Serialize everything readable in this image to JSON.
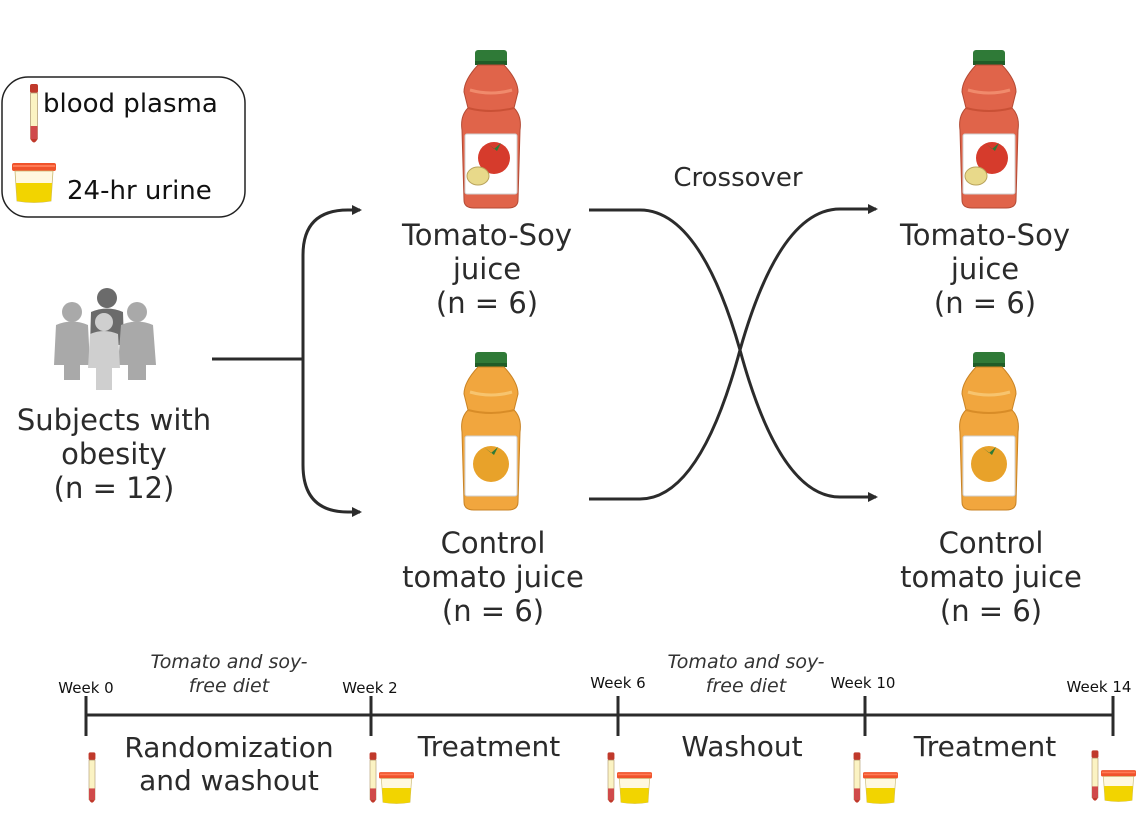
{
  "legend": {
    "blood_label": "blood plasma",
    "urine_label": "24-hr urine"
  },
  "subjects": {
    "line1": "Subjects with",
    "line2": "obesity",
    "line3": "(n = 12)"
  },
  "crossover_label": "Crossover",
  "arms": {
    "period1_top": {
      "line1": "Tomato-Soy",
      "line2": "juice",
      "line3": "(n = 6)"
    },
    "period1_bottom": {
      "line1": "Control",
      "line2": "tomato juice",
      "line3": "(n = 6)"
    },
    "period2_top": {
      "line1": "Tomato-Soy",
      "line2": "juice",
      "line3": "(n = 6)"
    },
    "period2_bottom": {
      "line1": "Control",
      "line2": "tomato juice",
      "line3": "(n = 6)"
    }
  },
  "timeline": {
    "weeks": [
      "Week 0",
      "Week 2",
      "Week 6",
      "Week 10",
      "Week 14"
    ],
    "diet_note_1": {
      "line1": "Tomato and soy-",
      "line2": "free diet"
    },
    "diet_note_2": {
      "line1": "Tomato and soy-",
      "line2": "free diet"
    },
    "phases": {
      "p1_line1": "Randomization",
      "p1_line2": "and washout",
      "p2": "Treatment",
      "p3": "Washout",
      "p4": "Treatment"
    }
  },
  "colors": {
    "soy_bottle": "#e0644a",
    "control_bottle": "#f1a63e",
    "cap": "#2f7a37",
    "tomato_red": "#d63b2c",
    "tomato_yellow": "#e8a22a",
    "urine": "#f2d400",
    "urine_cap": "#f0532b",
    "people_dark": "#6b6b6b",
    "people_light": "#bdbdbd"
  }
}
